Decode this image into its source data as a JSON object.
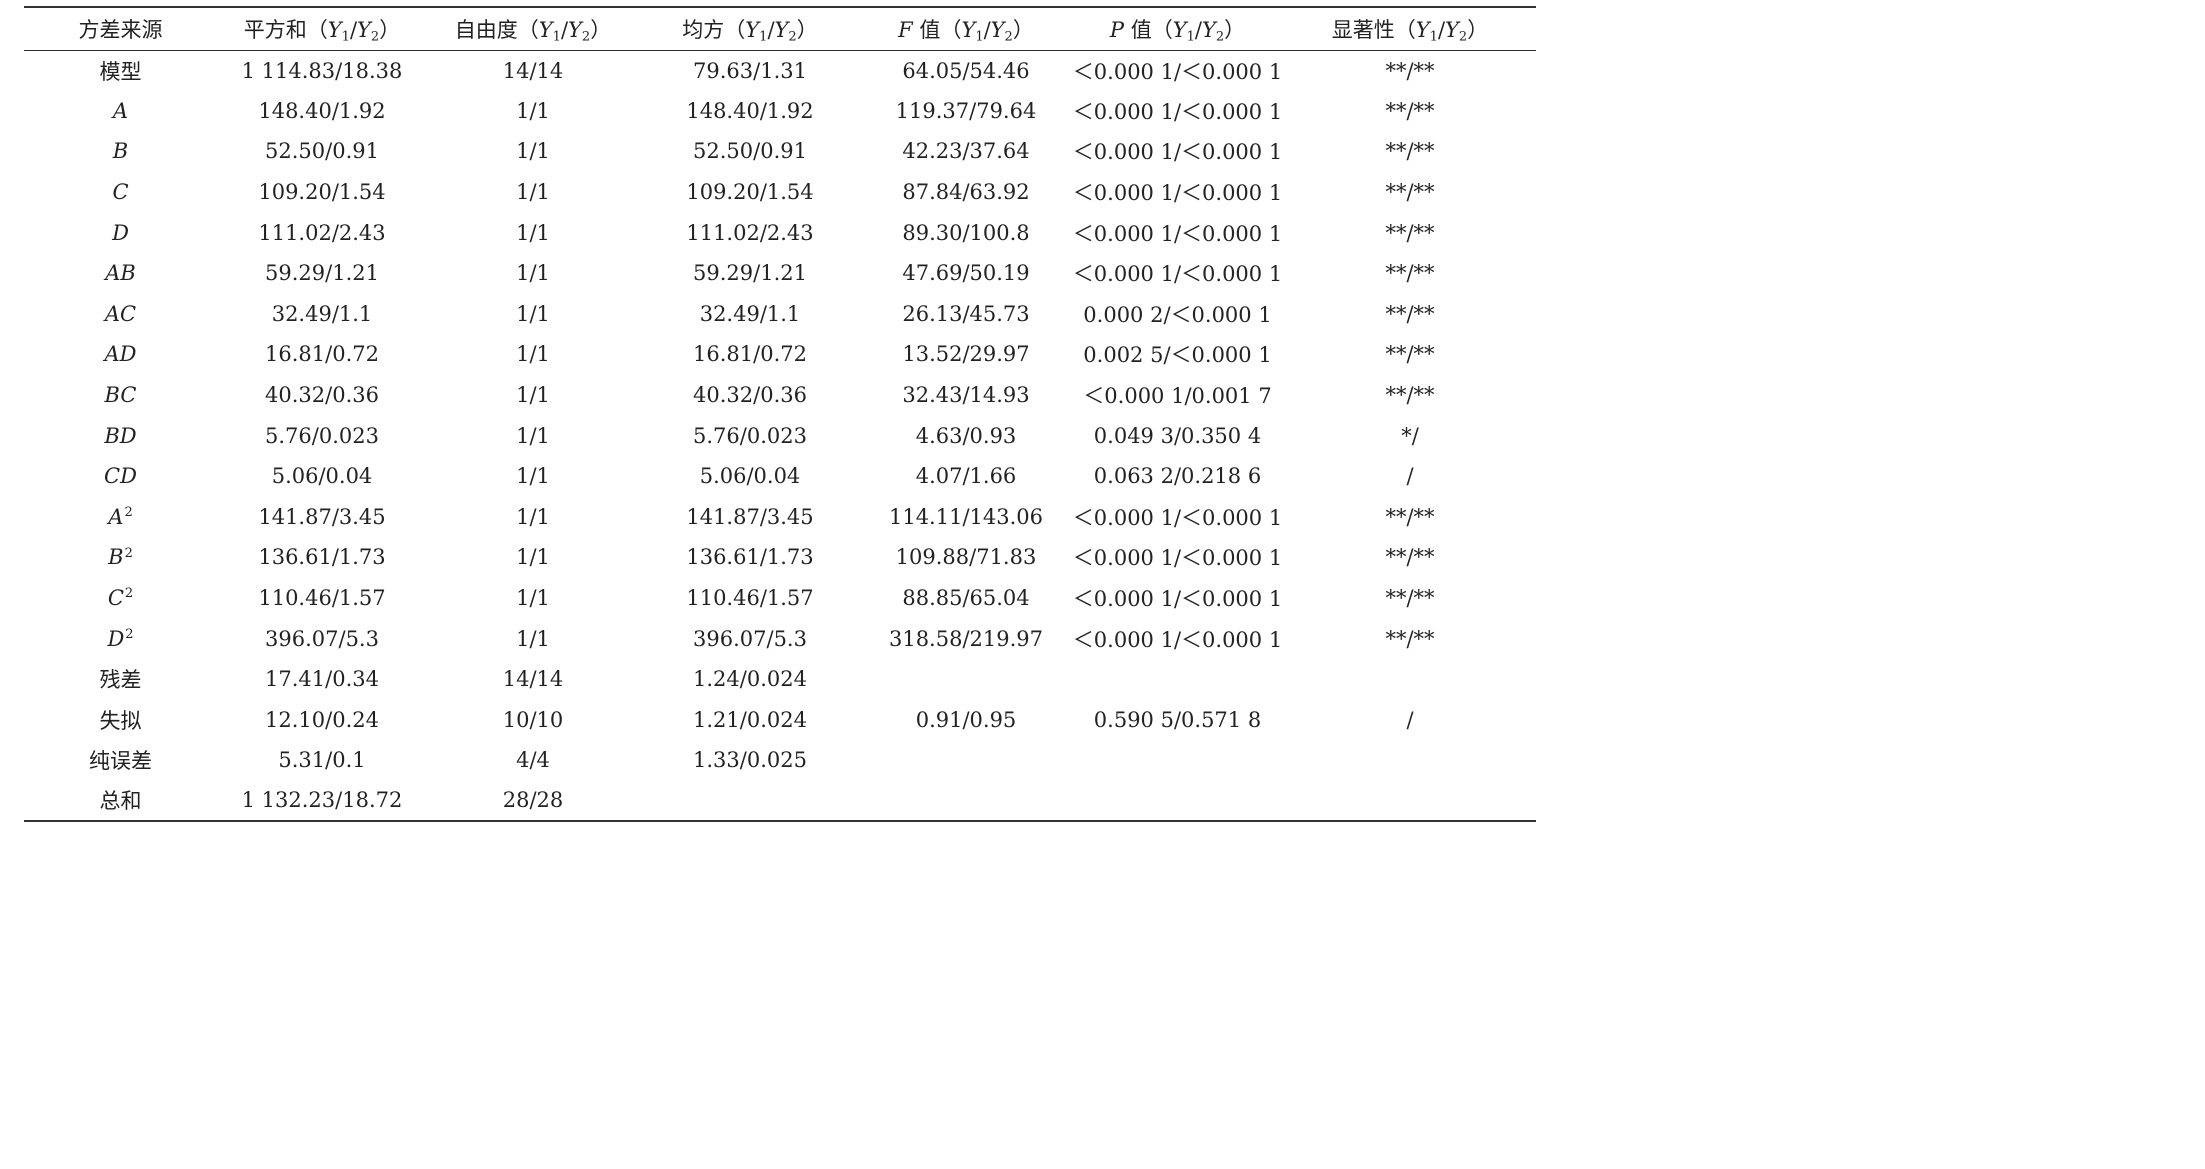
{
  "table": {
    "headers": [
      {
        "pre": "方差来源",
        "italic": "",
        "post": "",
        "units": false
      },
      {
        "pre": "平方和",
        "italic": "",
        "post": "",
        "units": true
      },
      {
        "pre": "自由度",
        "italic": "",
        "post": "",
        "units": true
      },
      {
        "pre": "均方",
        "italic": "",
        "post": "",
        "units": true
      },
      {
        "pre": "",
        "italic": "F",
        "post": " 值",
        "units": true
      },
      {
        "pre": "",
        "italic": "P",
        "post": " 值",
        "units": true
      },
      {
        "pre": "显著性",
        "italic": "",
        "post": "",
        "units": true
      }
    ],
    "header_unit": {
      "open": "（",
      "y": "Y",
      "sub1": "1",
      "slash": "/",
      "sub2": "2",
      "close": "）"
    },
    "rows": [
      {
        "source": {
          "text": "模型",
          "italic": false,
          "sup": ""
        },
        "ss": "1 114.83/18.38",
        "df": "14/14",
        "ms": "79.63/1.31",
        "f": "64.05/54.46",
        "p": "＜0.000 1/＜0.000 1",
        "sig": "**/**"
      },
      {
        "source": {
          "text": "A",
          "italic": true,
          "sup": ""
        },
        "ss": "148.40/1.92",
        "df": "1/1",
        "ms": "148.40/1.92",
        "f": "119.37/79.64",
        "p": "＜0.000 1/＜0.000 1",
        "sig": "**/**"
      },
      {
        "source": {
          "text": "B",
          "italic": true,
          "sup": ""
        },
        "ss": "52.50/0.91",
        "df": "1/1",
        "ms": "52.50/0.91",
        "f": "42.23/37.64",
        "p": "＜0.000 1/＜0.000 1",
        "sig": "**/**"
      },
      {
        "source": {
          "text": "C",
          "italic": true,
          "sup": ""
        },
        "ss": "109.20/1.54",
        "df": "1/1",
        "ms": "109.20/1.54",
        "f": "87.84/63.92",
        "p": "＜0.000 1/＜0.000 1",
        "sig": "**/**"
      },
      {
        "source": {
          "text": "D",
          "italic": true,
          "sup": ""
        },
        "ss": "111.02/2.43",
        "df": "1/1",
        "ms": "111.02/2.43",
        "f": "89.30/100.8",
        "p": "＜0.000 1/＜0.000 1",
        "sig": "**/**"
      },
      {
        "source": {
          "text": "AB",
          "italic": true,
          "sup": ""
        },
        "ss": "59.29/1.21",
        "df": "1/1",
        "ms": "59.29/1.21",
        "f": "47.69/50.19",
        "p": "＜0.000 1/＜0.000 1",
        "sig": "**/**"
      },
      {
        "source": {
          "text": "AC",
          "italic": true,
          "sup": ""
        },
        "ss": "32.49/1.1",
        "df": "1/1",
        "ms": "32.49/1.1",
        "f": "26.13/45.73",
        "p": "0.000 2/＜0.000 1",
        "sig": "**/**"
      },
      {
        "source": {
          "text": "AD",
          "italic": true,
          "sup": ""
        },
        "ss": "16.81/0.72",
        "df": "1/1",
        "ms": "16.81/0.72",
        "f": "13.52/29.97",
        "p": "0.002 5/＜0.000 1",
        "sig": "**/**"
      },
      {
        "source": {
          "text": "BC",
          "italic": true,
          "sup": ""
        },
        "ss": "40.32/0.36",
        "df": "1/1",
        "ms": "40.32/0.36",
        "f": "32.43/14.93",
        "p": "＜0.000 1/0.001 7",
        "sig": "**/**"
      },
      {
        "source": {
          "text": "BD",
          "italic": true,
          "sup": ""
        },
        "ss": "5.76/0.023",
        "df": "1/1",
        "ms": "5.76/0.023",
        "f": "4.63/0.93",
        "p": "0.049 3/0.350 4",
        "sig": "*/"
      },
      {
        "source": {
          "text": "CD",
          "italic": true,
          "sup": ""
        },
        "ss": "5.06/0.04",
        "df": "1/1",
        "ms": "5.06/0.04",
        "f": "4.07/1.66",
        "p": "0.063 2/0.218 6",
        "sig": "/"
      },
      {
        "source": {
          "text": "A",
          "italic": true,
          "sup": "2"
        },
        "ss": "141.87/3.45",
        "df": "1/1",
        "ms": "141.87/3.45",
        "f": "114.11/143.06",
        "p": "＜0.000 1/＜0.000 1",
        "sig": "**/**"
      },
      {
        "source": {
          "text": "B",
          "italic": true,
          "sup": "2"
        },
        "ss": "136.61/1.73",
        "df": "1/1",
        "ms": "136.61/1.73",
        "f": "109.88/71.83",
        "p": "＜0.000 1/＜0.000 1",
        "sig": "**/**"
      },
      {
        "source": {
          "text": "C",
          "italic": true,
          "sup": "2"
        },
        "ss": "110.46/1.57",
        "df": "1/1",
        "ms": "110.46/1.57",
        "f": "88.85/65.04",
        "p": "＜0.000 1/＜0.000 1",
        "sig": "**/**"
      },
      {
        "source": {
          "text": "D",
          "italic": true,
          "sup": "2"
        },
        "ss": "396.07/5.3",
        "df": "1/1",
        "ms": "396.07/5.3",
        "f": "318.58/219.97",
        "p": "＜0.000 1/＜0.000 1",
        "sig": "**/**"
      },
      {
        "source": {
          "text": "残差",
          "italic": false,
          "sup": ""
        },
        "ss": "17.41/0.34",
        "df": "14/14",
        "ms": "1.24/0.024",
        "f": "",
        "p": "",
        "sig": ""
      },
      {
        "source": {
          "text": "失拟",
          "italic": false,
          "sup": ""
        },
        "ss": "12.10/0.24",
        "df": "10/10",
        "ms": "1.21/0.024",
        "f": "0.91/0.95",
        "p": "0.590 5/0.571 8",
        "sig": "/"
      },
      {
        "source": {
          "text": "纯误差",
          "italic": false,
          "sup": ""
        },
        "ss": "5.31/0.1",
        "df": "4/4",
        "ms": "1.33/0.025",
        "f": "",
        "p": "",
        "sig": ""
      },
      {
        "source": {
          "text": "总和",
          "italic": false,
          "sup": ""
        },
        "ss": "1 132.23/18.72",
        "df": "28/28",
        "ms": "",
        "f": "",
        "p": "",
        "sig": ""
      }
    ]
  }
}
